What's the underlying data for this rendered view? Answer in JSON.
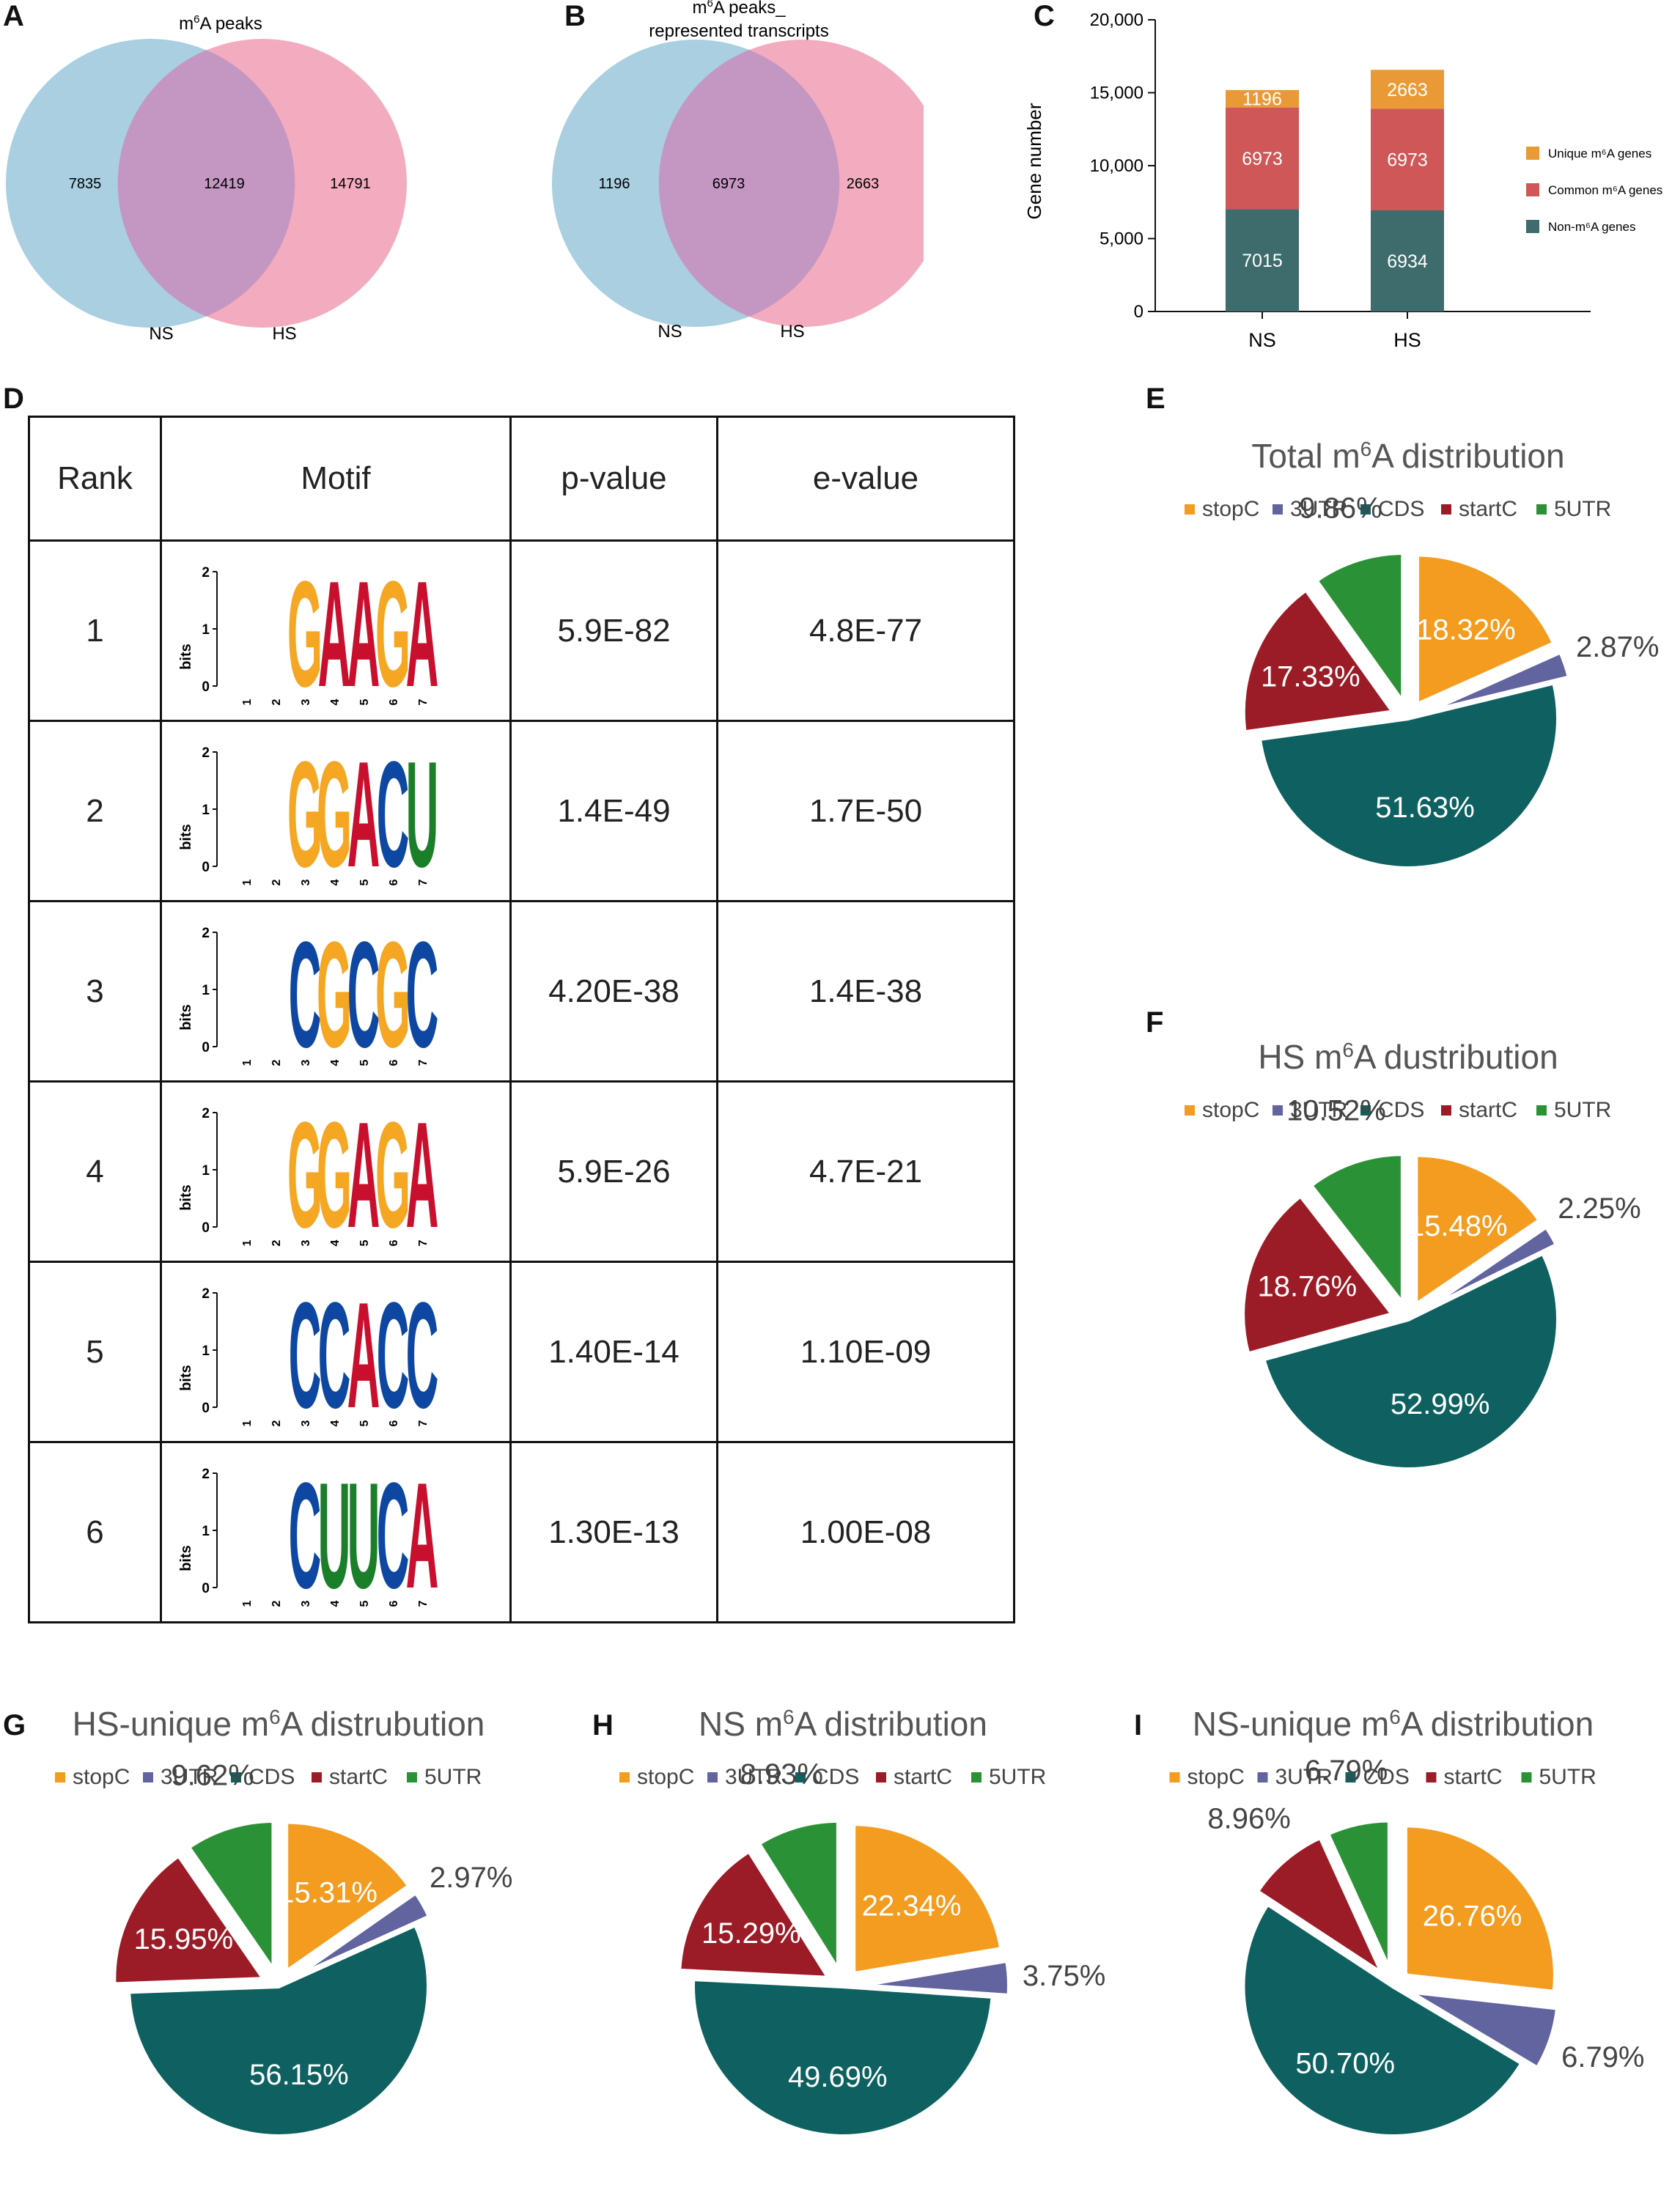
{
  "panels": {
    "A": "A",
    "B": "B",
    "C": "C",
    "D": "D",
    "E": "E",
    "F": "F",
    "G": "G",
    "H": "H",
    "I": "I"
  },
  "colors": {
    "ns_circle": "#a9cfe0",
    "hs_circle": "#f2a4ba",
    "overlap": "#c497c2",
    "stopC": "#f39c20",
    "3UTR": "#62649f",
    "CDS": "#0e6160",
    "startC": "#9b1c26",
    "5UTR": "#2b9136",
    "bar_unique": "#e99a36",
    "bar_common": "#cf5757",
    "bar_non": "#3e6b6b"
  },
  "venn": [
    {
      "title_prefix": "m",
      "title_sup": "6",
      "title_suffix": "A peaks",
      "title_line2": "",
      "left_only": "7835",
      "overlap": "12419",
      "right_only": "14791",
      "left_label": "NS",
      "right_label": "HS"
    },
    {
      "title_prefix": "m",
      "title_sup": "6",
      "title_suffix": "A peaks_",
      "title_line2": "represented transcripts",
      "left_only": "1196",
      "overlap": "6973",
      "right_only": "2663",
      "left_label": "NS",
      "right_label": "HS"
    }
  ],
  "chart_data": [
    {
      "type": "bar",
      "stacked": true,
      "categories": [
        "NS",
        "HS"
      ],
      "ylabel": "Gene number",
      "xlabel": "",
      "ylim": [
        0,
        20000
      ],
      "yticks": [
        "0",
        "5,000",
        "10,000",
        "15,000",
        "20,000"
      ],
      "series": [
        {
          "name": "Non-m⁶A genes",
          "values": [
            7015,
            6934
          ],
          "labels": [
            "7015",
            "6934"
          ]
        },
        {
          "name": "Common m⁶A genes",
          "values": [
            6973,
            6973
          ],
          "labels": [
            "6973",
            "6973"
          ]
        },
        {
          "name": "Unique m⁶A genes",
          "values": [
            1196,
            2663
          ],
          "labels": [
            "1196",
            "2663"
          ]
        }
      ],
      "legend_order": [
        "Unique m⁶A genes",
        "Common m⁶A genes",
        "Non-m⁶A genes"
      ],
      "legend_position": "right"
    },
    {
      "type": "table",
      "title": "Motif table",
      "columns": [
        "Rank",
        "Motif",
        "p-value",
        "e-value"
      ],
      "rows": [
        {
          "rank": "1",
          "motif": "GAAGA",
          "p": "5.9E-82",
          "e": "4.8E-77"
        },
        {
          "rank": "2",
          "motif": "GGACU",
          "p": "1.4E-49",
          "e": "1.7E-50"
        },
        {
          "rank": "3",
          "motif": "CGCGC",
          "p": "4.20E-38",
          "e": "1.4E-38"
        },
        {
          "rank": "4",
          "motif": "GGAGA",
          "p": "5.9E-26",
          "e": "4.7E-21"
        },
        {
          "rank": "5",
          "motif": "CCACC",
          "p": "1.40E-14",
          "e": "1.10E-09"
        },
        {
          "rank": "6",
          "motif": "CUUCA",
          "p": "1.30E-13",
          "e": "1.00E-08"
        }
      ],
      "logo_ylabel": "bits",
      "logo_yticks": [
        "0",
        "1",
        "2"
      ],
      "logo_xticks": [
        "1",
        "2",
        "3",
        "4",
        "5",
        "6",
        "7"
      ]
    },
    {
      "type": "pie",
      "id": "E",
      "title_prefix": "Total m",
      "title_sup": "6",
      "title_suffix": "A distribution",
      "legend": [
        "stopC",
        "3UTR",
        "CDS",
        "startC",
        "5UTR"
      ],
      "slices": [
        {
          "name": "stopC",
          "value": 18.32,
          "label": "18.32%"
        },
        {
          "name": "3UTR",
          "value": 2.87,
          "label": "2.87%"
        },
        {
          "name": "CDS",
          "value": 51.63,
          "label": "51.63%"
        },
        {
          "name": "startC",
          "value": 17.33,
          "label": "17.33%"
        },
        {
          "name": "5UTR",
          "value": 9.86,
          "label": "9.86%"
        }
      ]
    },
    {
      "type": "pie",
      "id": "F",
      "title_prefix": "HS m",
      "title_sup": "6",
      "title_suffix": "A dustribution",
      "legend": [
        "stopC",
        "3UTR",
        "CDS",
        "startC",
        "5UTR"
      ],
      "slices": [
        {
          "name": "stopC",
          "value": 15.48,
          "label": "15.48%"
        },
        {
          "name": "3UTR",
          "value": 2.25,
          "label": "2.25%"
        },
        {
          "name": "CDS",
          "value": 52.99,
          "label": "52.99%"
        },
        {
          "name": "startC",
          "value": 18.76,
          "label": "18.76%"
        },
        {
          "name": "5UTR",
          "value": 10.52,
          "label": "10.52%"
        }
      ]
    },
    {
      "type": "pie",
      "id": "G",
      "title_prefix": "HS-unique m",
      "title_sup": "6",
      "title_suffix": "A distrubution",
      "legend": [
        "stopC",
        "3UTR",
        "CDS",
        "startC",
        "5UTR"
      ],
      "slices": [
        {
          "name": "stopC",
          "value": 15.31,
          "label": "15.31%"
        },
        {
          "name": "3UTR",
          "value": 2.97,
          "label": "2.97%"
        },
        {
          "name": "CDS",
          "value": 56.15,
          "label": "56.15%"
        },
        {
          "name": "startC",
          "value": 15.95,
          "label": "15.95%"
        },
        {
          "name": "5UTR",
          "value": 9.62,
          "label": "9.62%"
        }
      ]
    },
    {
      "type": "pie",
      "id": "H",
      "title_prefix": "NS m",
      "title_sup": "6",
      "title_suffix": "A distribution",
      "legend": [
        "stopC",
        "3UTR",
        "CDS",
        "startC",
        "5UTR"
      ],
      "slices": [
        {
          "name": "stopC",
          "value": 22.34,
          "label": "22.34%"
        },
        {
          "name": "3UTR",
          "value": 3.75,
          "label": "3.75%"
        },
        {
          "name": "CDS",
          "value": 49.69,
          "label": "49.69%"
        },
        {
          "name": "startC",
          "value": 15.29,
          "label": "15.29%"
        },
        {
          "name": "5UTR",
          "value": 8.93,
          "label": "8.93%"
        }
      ]
    },
    {
      "type": "pie",
      "id": "I",
      "title_prefix": "NS-unique m",
      "title_sup": "6",
      "title_suffix": "A distribution",
      "legend": [
        "stopC",
        "3UTR",
        "CDS",
        "startC",
        "5UTR"
      ],
      "slices": [
        {
          "name": "stopC",
          "value": 26.76,
          "label": "26.76%"
        },
        {
          "name": "3UTR",
          "value": 6.79,
          "label": "6.79%"
        },
        {
          "name": "CDS",
          "value": 50.7,
          "label": "50.70%"
        },
        {
          "name": "startC",
          "value": 8.96,
          "label": "8.96%"
        },
        {
          "name": "5UTR",
          "value": 6.79,
          "label": "6.79%"
        }
      ]
    }
  ]
}
